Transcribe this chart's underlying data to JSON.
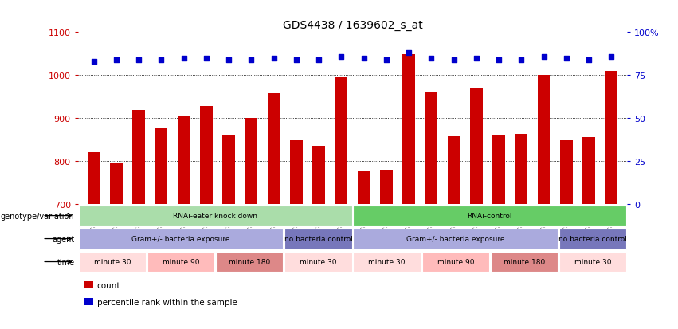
{
  "title": "GDS4438 / 1639602_s_at",
  "samples": [
    "GSM783343",
    "GSM783344",
    "GSM783345",
    "GSM783349",
    "GSM783350",
    "GSM783351",
    "GSM783355",
    "GSM783356",
    "GSM783357",
    "GSM783337",
    "GSM783338",
    "GSM783339",
    "GSM783340",
    "GSM783341",
    "GSM783342",
    "GSM783346",
    "GSM783347",
    "GSM783348",
    "GSM783352",
    "GSM783353",
    "GSM783354",
    "GSM783334",
    "GSM783335",
    "GSM783336"
  ],
  "bar_values": [
    820,
    795,
    918,
    875,
    905,
    928,
    860,
    900,
    958,
    848,
    835,
    995,
    775,
    778,
    1048,
    962,
    858,
    970,
    860,
    862,
    1000,
    848,
    855,
    1010
  ],
  "percentile_values": [
    83,
    84,
    84,
    84,
    85,
    85,
    84,
    84,
    85,
    84,
    84,
    86,
    85,
    84,
    88,
    85,
    84,
    85,
    84,
    84,
    86,
    85,
    84,
    86
  ],
  "bar_color": "#cc0000",
  "percentile_color": "#0000cc",
  "ylim_left": [
    700,
    1100
  ],
  "ylim_right": [
    0,
    100
  ],
  "yticks_left": [
    700,
    800,
    900,
    1000,
    1100
  ],
  "yticks_right": [
    0,
    25,
    50,
    75,
    100
  ],
  "grid_values": [
    800,
    900,
    1000
  ],
  "genotype_groups": [
    {
      "label": "RNAi-eater knock down",
      "start": 0,
      "end": 12,
      "color": "#aaddaa"
    },
    {
      "label": "RNAi-control",
      "start": 12,
      "end": 24,
      "color": "#66cc66"
    }
  ],
  "agent_groups": [
    {
      "label": "Gram+/- bacteria exposure",
      "start": 0,
      "end": 9,
      "color": "#aaaadd"
    },
    {
      "label": "no bacteria control",
      "start": 9,
      "end": 12,
      "color": "#7777bb"
    },
    {
      "label": "Gram+/- bacteria exposure",
      "start": 12,
      "end": 21,
      "color": "#aaaadd"
    },
    {
      "label": "no bacteria control",
      "start": 21,
      "end": 24,
      "color": "#7777bb"
    }
  ],
  "time_groups": [
    {
      "label": "minute 30",
      "start": 0,
      "end": 3,
      "color": "#ffdddd"
    },
    {
      "label": "minute 90",
      "start": 3,
      "end": 6,
      "color": "#ffbbbb"
    },
    {
      "label": "minute 180",
      "start": 6,
      "end": 9,
      "color": "#dd8888"
    },
    {
      "label": "minute 30",
      "start": 9,
      "end": 12,
      "color": "#ffdddd"
    },
    {
      "label": "minute 30",
      "start": 12,
      "end": 15,
      "color": "#ffdddd"
    },
    {
      "label": "minute 90",
      "start": 15,
      "end": 18,
      "color": "#ffbbbb"
    },
    {
      "label": "minute 180",
      "start": 18,
      "end": 21,
      "color": "#dd8888"
    },
    {
      "label": "minute 30",
      "start": 21,
      "end": 24,
      "color": "#ffdddd"
    }
  ],
  "row_labels": [
    "genotype/variation",
    "agent",
    "time"
  ],
  "legend_items": [
    {
      "label": "count",
      "color": "#cc0000"
    },
    {
      "label": "percentile rank within the sample",
      "color": "#0000cc"
    }
  ]
}
